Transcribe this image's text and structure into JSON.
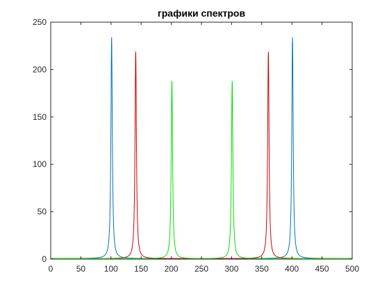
{
  "chart_data": {
    "type": "line",
    "title": "графики спектров",
    "xlabel": "",
    "ylabel": "",
    "xlim": [
      0,
      500
    ],
    "ylim": [
      0,
      250
    ],
    "x_ticks": [
      0,
      50,
      100,
      150,
      200,
      250,
      300,
      350,
      400,
      450,
      500
    ],
    "y_ticks": [
      0,
      50,
      100,
      150,
      200,
      250
    ],
    "grid": false,
    "series": [
      {
        "color": "#0072BD",
        "peaks": [
          {
            "x": 101,
            "y": 234
          },
          {
            "x": 401,
            "y": 234
          }
        ],
        "base": 0.6
      },
      {
        "color": "#D00000",
        "peaks": [
          {
            "x": 141,
            "y": 219
          },
          {
            "x": 361,
            "y": 219
          }
        ],
        "base": 0.5
      },
      {
        "color": "#00E000",
        "peaks": [
          {
            "x": 201,
            "y": 188
          },
          {
            "x": 301,
            "y": 188
          }
        ],
        "base": 0.4
      }
    ]
  }
}
